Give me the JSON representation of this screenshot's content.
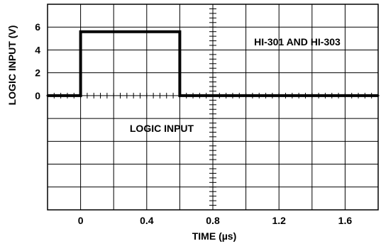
{
  "chart_data": {
    "type": "line",
    "title": "",
    "xlabel": "TIME (µs)",
    "ylabel": "LOGIC INPUT (V)",
    "xlim": [
      -0.2,
      1.8
    ],
    "ylim": [
      -10,
      8
    ],
    "x_ticks": [
      0,
      0.4,
      0.8,
      1.2,
      1.6
    ],
    "x_tick_labels": [
      "0",
      "0.4",
      "0.8",
      "1.2",
      "1.6"
    ],
    "y_ticks": [
      0,
      2,
      4,
      6
    ],
    "y_tick_labels": [
      "0",
      "2",
      "4",
      "6"
    ],
    "grid": true,
    "series": [
      {
        "x": [
          -0.2,
          0,
          0,
          0.6,
          0.6,
          1.8
        ],
        "y": [
          0,
          0,
          5.6,
          5.6,
          0,
          0
        ]
      }
    ],
    "annotations": {
      "device": "HI-301 AND HI-303",
      "trace": "LOGIC INPUT"
    }
  }
}
